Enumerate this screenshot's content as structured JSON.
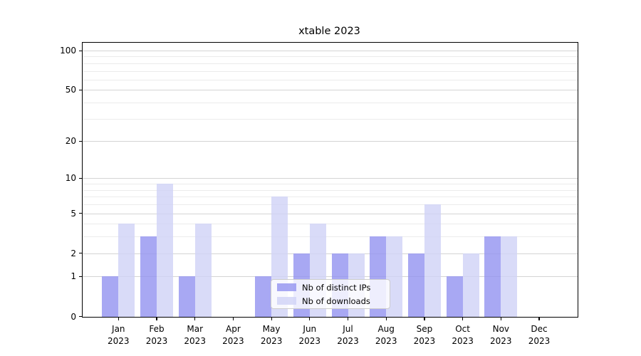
{
  "chart_data": {
    "type": "bar",
    "title": "xtable 2023",
    "xlabel": "",
    "ylabel": "",
    "categories": [
      "Jan",
      "Feb",
      "Mar",
      "Apr",
      "May",
      "Jun",
      "Jul",
      "Aug",
      "Sep",
      "Oct",
      "Nov",
      "Dec"
    ],
    "category_year": "2023",
    "series": [
      {
        "name": "Nb of distinct IPs",
        "color": "rgba(146,146,240,0.8)",
        "values": [
          1,
          3,
          1,
          0,
          1,
          2,
          2,
          3,
          2,
          1,
          3,
          0
        ]
      },
      {
        "name": "Nb of downloads",
        "color": "rgba(208,210,246,0.8)",
        "values": [
          4,
          9,
          4,
          0,
          7,
          4,
          2,
          3,
          6,
          2,
          3,
          0
        ]
      }
    ],
    "yscale": "log1p",
    "ylim": [
      0,
      100
    ],
    "yticks_major": [
      0,
      1,
      2,
      5,
      10,
      20,
      50,
      100
    ],
    "yticks_minor": [
      3,
      4,
      6,
      7,
      8,
      9,
      30,
      40,
      60,
      70,
      80,
      90
    ],
    "grid": "on",
    "legend_position": "lower center",
    "colors": {
      "major_grid": "#d4d4d4",
      "minor_grid": "#ebebeb",
      "axis": "#000000",
      "background": "#ffffff"
    }
  }
}
